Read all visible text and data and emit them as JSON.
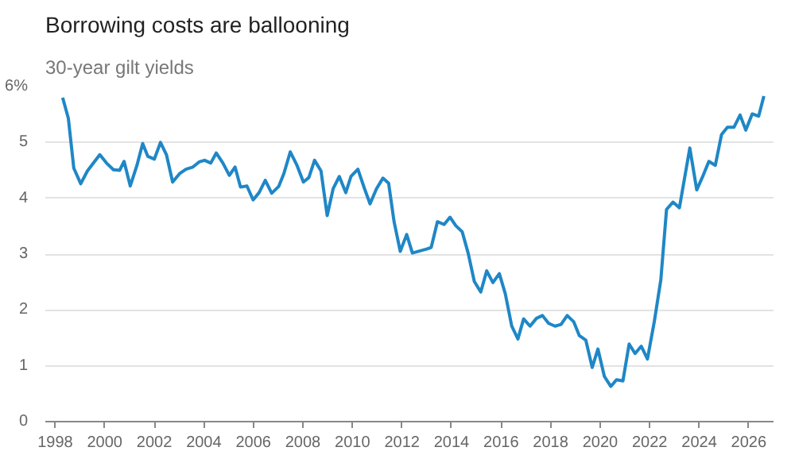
{
  "chart_data": {
    "type": "line",
    "title": "Borrowing costs are ballooning",
    "subtitle": "30-year gilt yields",
    "x": [
      1998.3,
      1998.53,
      1998.75,
      1999.03,
      1999.3,
      1999.8,
      2000.07,
      2000.35,
      2000.6,
      2000.78,
      2001.03,
      2001.3,
      2001.53,
      2001.74,
      2002.0,
      2002.25,
      2002.49,
      2002.74,
      2003.02,
      2003.28,
      2003.56,
      2003.81,
      2004.03,
      2004.28,
      2004.5,
      2004.77,
      2005.03,
      2005.26,
      2005.48,
      2005.74,
      2005.99,
      2006.23,
      2006.48,
      2006.74,
      2007.02,
      2007.23,
      2007.49,
      2007.76,
      2008.02,
      2008.24,
      2008.47,
      2008.73,
      2008.98,
      2009.22,
      2009.47,
      2009.73,
      2009.94,
      2010.22,
      2010.48,
      2010.71,
      2010.97,
      2011.23,
      2011.46,
      2011.68,
      2011.93,
      2012.19,
      2012.42,
      2013.0,
      2013.18,
      2013.43,
      2013.7,
      2013.94,
      2014.17,
      2014.43,
      2014.67,
      2014.92,
      2015.18,
      2015.42,
      2015.67,
      2015.93,
      2016.17,
      2016.43,
      2016.68,
      2016.91,
      2017.17,
      2017.43,
      2017.67,
      2017.92,
      2018.18,
      2018.42,
      2018.67,
      2018.93,
      2019.16,
      2019.42,
      2019.68,
      2019.91,
      2020.17,
      2020.43,
      2020.66,
      2020.92,
      2021.17,
      2021.41,
      2021.66,
      2021.91,
      2022.19,
      2022.45,
      2022.68,
      2022.94,
      2023.2,
      2023.62,
      2023.9,
      2024.16,
      2024.39,
      2024.65,
      2024.9,
      2025.14,
      2025.4,
      2025.65,
      2025.88,
      2026.14,
      2026.4,
      2026.61
    ],
    "series": [
      {
        "color": "#1f87c6",
        "values": [
          5.8,
          5.43,
          4.54,
          4.26,
          4.49,
          4.78,
          4.63,
          4.51,
          4.5,
          4.66,
          4.22,
          4.59,
          4.98,
          4.75,
          4.7,
          5.0,
          4.78,
          4.29,
          4.44,
          4.52,
          4.56,
          4.65,
          4.68,
          4.63,
          4.81,
          4.63,
          4.41,
          4.56,
          4.2,
          4.22,
          3.97,
          4.1,
          4.32,
          4.09,
          4.21,
          4.44,
          4.83,
          4.59,
          4.29,
          4.37,
          4.68,
          4.49,
          3.69,
          4.17,
          4.39,
          4.1,
          4.39,
          4.52,
          4.18,
          3.9,
          4.17,
          4.36,
          4.27,
          3.58,
          3.05,
          3.35,
          3.02,
          3.09,
          3.12,
          3.58,
          3.53,
          3.66,
          3.51,
          3.4,
          3.02,
          2.51,
          2.32,
          2.7,
          2.49,
          2.65,
          2.29,
          1.71,
          1.48,
          1.84,
          1.71,
          1.85,
          1.9,
          1.76,
          1.71,
          1.74,
          1.9,
          1.79,
          1.54,
          1.46,
          0.97,
          1.3,
          0.81,
          0.63,
          0.75,
          0.73,
          1.39,
          1.22,
          1.35,
          1.12,
          1.8,
          2.54,
          3.8,
          3.93,
          3.83,
          4.9,
          4.15,
          4.41,
          4.66,
          4.59,
          5.14,
          5.27,
          5.27,
          5.49,
          5.22,
          5.51,
          5.47,
          5.83
        ]
      }
    ],
    "xlim": [
      1997.6,
      2027
    ],
    "xticks": [
      1998,
      2000,
      2002,
      2004,
      2006,
      2008,
      2010,
      2012,
      2014,
      2016,
      2018,
      2020,
      2022,
      2024,
      2026
    ],
    "ylim": [
      0,
      6
    ],
    "yticks": [
      0,
      1,
      2,
      3,
      4,
      5,
      {
        "value": 6,
        "label": "6%"
      }
    ],
    "grid": "y",
    "marker": "none",
    "line_style": "solid"
  }
}
